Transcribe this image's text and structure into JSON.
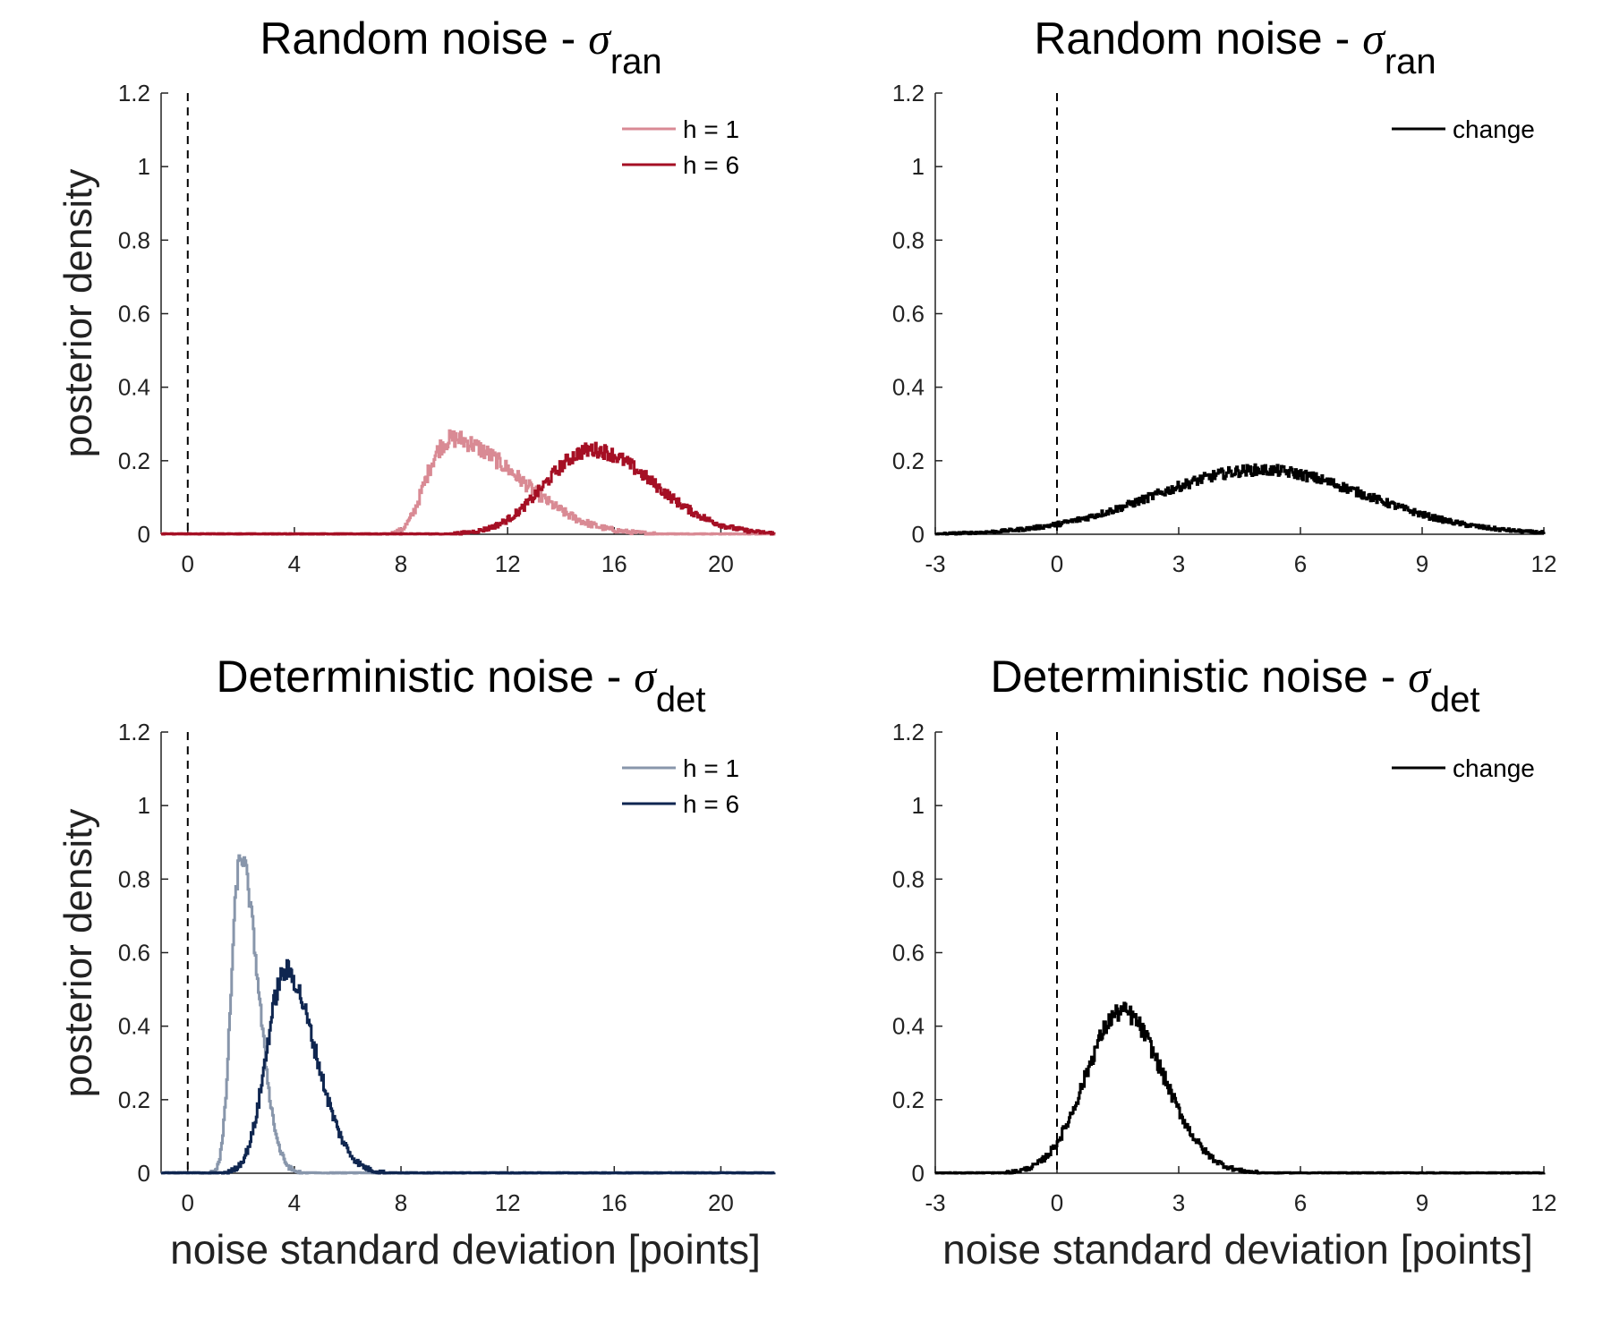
{
  "chart_data": [
    {
      "type": "line",
      "title_main": "Random noise - ",
      "title_symbol": "σ",
      "title_sub": "ran",
      "xlabel": "",
      "ylabel": "posterior density",
      "xlim": [
        -1,
        22
      ],
      "ylim": [
        0,
        1.2
      ],
      "xticks": [
        0,
        4,
        8,
        12,
        16,
        20
      ],
      "yticks": [
        0,
        0.2,
        0.4,
        0.6,
        0.8,
        1,
        1.2
      ],
      "ytick_labels": [
        "0",
        "0.2",
        "0.4",
        "0.6",
        "0.8",
        "1",
        "1.2"
      ],
      "reference_line_x": 0,
      "legend": "top-right",
      "series": [
        {
          "name": "h = 1",
          "color": "#d98a94",
          "mean": 10.0,
          "sd": 1.55,
          "skew": 2.2,
          "peak": 0.26,
          "noise": 0.025,
          "x_range": [
            -1,
            22
          ]
        },
        {
          "name": "h = 6",
          "color": "#a50f24",
          "mean": 15.2,
          "sd": 2.0,
          "skew": 0.6,
          "peak": 0.23,
          "noise": 0.02,
          "x_range": [
            -1,
            22
          ]
        }
      ]
    },
    {
      "type": "line",
      "title_main": "Random noise - ",
      "title_symbol": "σ",
      "title_sub": "ran",
      "xlabel": "",
      "ylabel": "",
      "xlim": [
        -3,
        12
      ],
      "ylim": [
        0,
        1.2
      ],
      "xticks": [
        -3,
        0,
        3,
        6,
        9,
        12
      ],
      "yticks": [
        0,
        0.2,
        0.4,
        0.6,
        0.8,
        1,
        1.2
      ],
      "ytick_labels": [
        "0",
        "0.2",
        "0.4",
        "0.6",
        "0.8",
        "1",
        "1.2"
      ],
      "reference_line_x": 0,
      "legend": "top-right",
      "series": [
        {
          "name": "change",
          "color": "#000000",
          "mean": 5.0,
          "sd": 2.6,
          "skew": 0.0,
          "peak": 0.175,
          "noise": 0.015,
          "x_range": [
            -3,
            12
          ]
        }
      ]
    },
    {
      "type": "line",
      "title_main": "Deterministic noise - ",
      "title_symbol": "σ",
      "title_sub": "det",
      "xlabel": "noise standard deviation [points]",
      "ylabel": "posterior density",
      "xlim": [
        -1,
        22
      ],
      "ylim": [
        0,
        1.2
      ],
      "xticks": [
        0,
        4,
        8,
        12,
        16,
        20
      ],
      "yticks": [
        0,
        0.2,
        0.4,
        0.6,
        0.8,
        1,
        1.2
      ],
      "ytick_labels": [
        "0",
        "0.2",
        "0.4",
        "0.6",
        "0.8",
        "1",
        "1.2"
      ],
      "reference_line_x": 0,
      "legend": "top-right",
      "series": [
        {
          "name": "h = 1",
          "color": "#8896ab",
          "mean": 2.0,
          "sd": 0.48,
          "skew": 1.3,
          "peak": 0.86,
          "noise": 0.03,
          "x_range": [
            -1,
            22
          ]
        },
        {
          "name": "h = 6",
          "color": "#0f2650",
          "mean": 3.7,
          "sd": 0.9,
          "skew": 0.9,
          "peak": 0.55,
          "noise": 0.03,
          "x_range": [
            -1,
            22
          ]
        }
      ]
    },
    {
      "type": "line",
      "title_main": "Deterministic noise - ",
      "title_symbol": "σ",
      "title_sub": "det",
      "xlabel": "noise standard deviation [points]",
      "ylabel": "",
      "xlim": [
        -3,
        12
      ],
      "ylim": [
        0,
        1.2
      ],
      "xticks": [
        -3,
        0,
        3,
        6,
        9,
        12
      ],
      "yticks": [
        0,
        0.2,
        0.4,
        0.6,
        0.8,
        1,
        1.2
      ],
      "ytick_labels": [
        "0",
        "0.2",
        "0.4",
        "0.6",
        "0.8",
        "1",
        "1.2"
      ],
      "reference_line_x": 0,
      "legend": "top-right",
      "series": [
        {
          "name": "change",
          "color": "#000000",
          "mean": 1.6,
          "sd": 0.95,
          "skew": 0.3,
          "peak": 0.44,
          "noise": 0.025,
          "x_range": [
            -3,
            12
          ]
        }
      ]
    }
  ]
}
